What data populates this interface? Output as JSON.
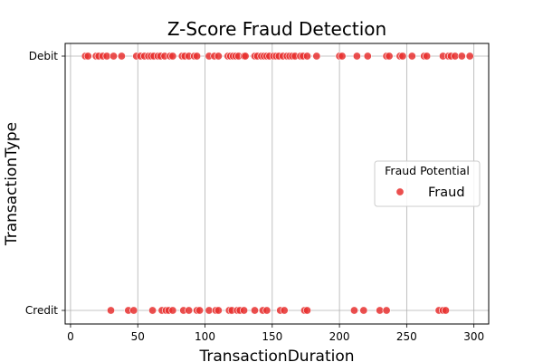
{
  "chart_data": {
    "type": "scatter",
    "title": "Z-Score Fraud Detection",
    "xlabel": "TransactionDuration",
    "ylabel": "TransactionType",
    "xlim": [
      -4,
      311
    ],
    "xticks": [
      0,
      50,
      100,
      150,
      200,
      250,
      300
    ],
    "categories": [
      "Credit",
      "Debit"
    ],
    "grid": true,
    "legend": {
      "title": "Fraud Potential",
      "position": "center-right"
    },
    "series": [
      {
        "name": "Fraud",
        "color": "#e8302f",
        "points": [
          {
            "x": 11,
            "y": "Debit"
          },
          {
            "x": 13,
            "y": "Debit"
          },
          {
            "x": 19,
            "y": "Debit"
          },
          {
            "x": 21,
            "y": "Debit"
          },
          {
            "x": 24,
            "y": "Debit"
          },
          {
            "x": 27,
            "y": "Debit"
          },
          {
            "x": 32,
            "y": "Debit"
          },
          {
            "x": 38,
            "y": "Debit"
          },
          {
            "x": 49,
            "y": "Debit"
          },
          {
            "x": 52,
            "y": "Debit"
          },
          {
            "x": 55,
            "y": "Debit"
          },
          {
            "x": 58,
            "y": "Debit"
          },
          {
            "x": 60,
            "y": "Debit"
          },
          {
            "x": 62,
            "y": "Debit"
          },
          {
            "x": 65,
            "y": "Debit"
          },
          {
            "x": 67,
            "y": "Debit"
          },
          {
            "x": 70,
            "y": "Debit"
          },
          {
            "x": 74,
            "y": "Debit"
          },
          {
            "x": 76,
            "y": "Debit"
          },
          {
            "x": 83,
            "y": "Debit"
          },
          {
            "x": 85,
            "y": "Debit"
          },
          {
            "x": 88,
            "y": "Debit"
          },
          {
            "x": 92,
            "y": "Debit"
          },
          {
            "x": 94,
            "y": "Debit"
          },
          {
            "x": 103,
            "y": "Debit"
          },
          {
            "x": 107,
            "y": "Debit"
          },
          {
            "x": 110,
            "y": "Debit"
          },
          {
            "x": 117,
            "y": "Debit"
          },
          {
            "x": 119,
            "y": "Debit"
          },
          {
            "x": 121,
            "y": "Debit"
          },
          {
            "x": 123,
            "y": "Debit"
          },
          {
            "x": 125,
            "y": "Debit"
          },
          {
            "x": 129,
            "y": "Debit"
          },
          {
            "x": 130,
            "y": "Debit"
          },
          {
            "x": 137,
            "y": "Debit"
          },
          {
            "x": 139,
            "y": "Debit"
          },
          {
            "x": 142,
            "y": "Debit"
          },
          {
            "x": 144,
            "y": "Debit"
          },
          {
            "x": 146,
            "y": "Debit"
          },
          {
            "x": 148,
            "y": "Debit"
          },
          {
            "x": 151,
            "y": "Debit"
          },
          {
            "x": 153,
            "y": "Debit"
          },
          {
            "x": 155,
            "y": "Debit"
          },
          {
            "x": 158,
            "y": "Debit"
          },
          {
            "x": 161,
            "y": "Debit"
          },
          {
            "x": 163,
            "y": "Debit"
          },
          {
            "x": 165,
            "y": "Debit"
          },
          {
            "x": 167,
            "y": "Debit"
          },
          {
            "x": 171,
            "y": "Debit"
          },
          {
            "x": 173,
            "y": "Debit"
          },
          {
            "x": 176,
            "y": "Debit"
          },
          {
            "x": 183,
            "y": "Debit"
          },
          {
            "x": 200,
            "y": "Debit"
          },
          {
            "x": 202,
            "y": "Debit"
          },
          {
            "x": 213,
            "y": "Debit"
          },
          {
            "x": 221,
            "y": "Debit"
          },
          {
            "x": 235,
            "y": "Debit"
          },
          {
            "x": 237,
            "y": "Debit"
          },
          {
            "x": 245,
            "y": "Debit"
          },
          {
            "x": 247,
            "y": "Debit"
          },
          {
            "x": 254,
            "y": "Debit"
          },
          {
            "x": 263,
            "y": "Debit"
          },
          {
            "x": 265,
            "y": "Debit"
          },
          {
            "x": 277,
            "y": "Debit"
          },
          {
            "x": 281,
            "y": "Debit"
          },
          {
            "x": 283,
            "y": "Debit"
          },
          {
            "x": 286,
            "y": "Debit"
          },
          {
            "x": 291,
            "y": "Debit"
          },
          {
            "x": 297,
            "y": "Debit"
          },
          {
            "x": 30,
            "y": "Credit"
          },
          {
            "x": 43,
            "y": "Credit"
          },
          {
            "x": 47,
            "y": "Credit"
          },
          {
            "x": 61,
            "y": "Credit"
          },
          {
            "x": 68,
            "y": "Credit"
          },
          {
            "x": 71,
            "y": "Credit"
          },
          {
            "x": 73,
            "y": "Credit"
          },
          {
            "x": 76,
            "y": "Credit"
          },
          {
            "x": 84,
            "y": "Credit"
          },
          {
            "x": 88,
            "y": "Credit"
          },
          {
            "x": 94,
            "y": "Credit"
          },
          {
            "x": 96,
            "y": "Credit"
          },
          {
            "x": 103,
            "y": "Credit"
          },
          {
            "x": 108,
            "y": "Credit"
          },
          {
            "x": 110,
            "y": "Credit"
          },
          {
            "x": 118,
            "y": "Credit"
          },
          {
            "x": 120,
            "y": "Credit"
          },
          {
            "x": 124,
            "y": "Credit"
          },
          {
            "x": 126,
            "y": "Credit"
          },
          {
            "x": 129,
            "y": "Credit"
          },
          {
            "x": 137,
            "y": "Credit"
          },
          {
            "x": 143,
            "y": "Credit"
          },
          {
            "x": 146,
            "y": "Credit"
          },
          {
            "x": 156,
            "y": "Credit"
          },
          {
            "x": 159,
            "y": "Credit"
          },
          {
            "x": 174,
            "y": "Credit"
          },
          {
            "x": 176,
            "y": "Credit"
          },
          {
            "x": 211,
            "y": "Credit"
          },
          {
            "x": 218,
            "y": "Credit"
          },
          {
            "x": 230,
            "y": "Credit"
          },
          {
            "x": 235,
            "y": "Credit"
          },
          {
            "x": 274,
            "y": "Credit"
          },
          {
            "x": 277,
            "y": "Credit"
          },
          {
            "x": 279,
            "y": "Credit"
          }
        ]
      }
    ]
  }
}
